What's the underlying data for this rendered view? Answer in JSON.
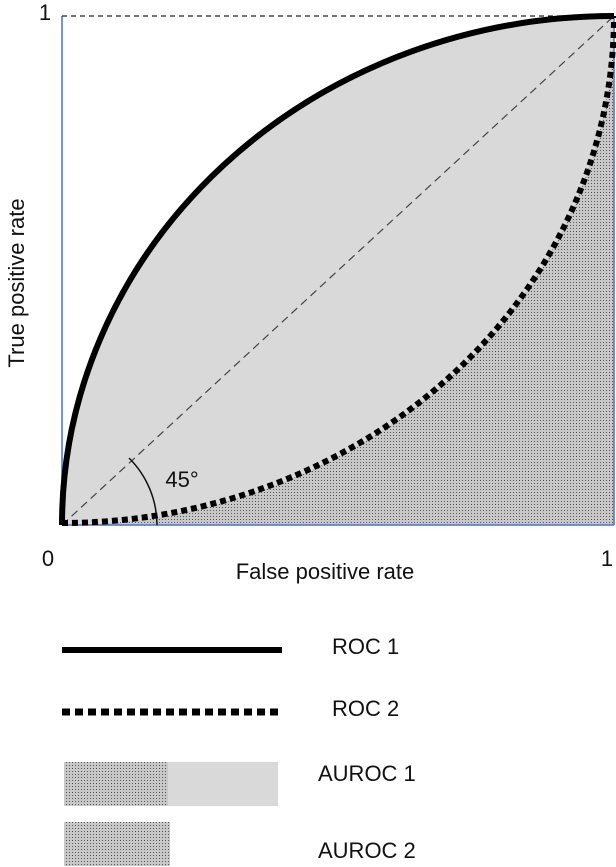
{
  "axes": {
    "y_max": "1",
    "origin": "0",
    "x_max": "1",
    "x_title": "False positive rate",
    "y_title": "True positive rate"
  },
  "annotation": "45°",
  "legend": [
    "ROC 1",
    "ROC 2",
    "AUROC 1",
    "AUROC 2"
  ]
}
